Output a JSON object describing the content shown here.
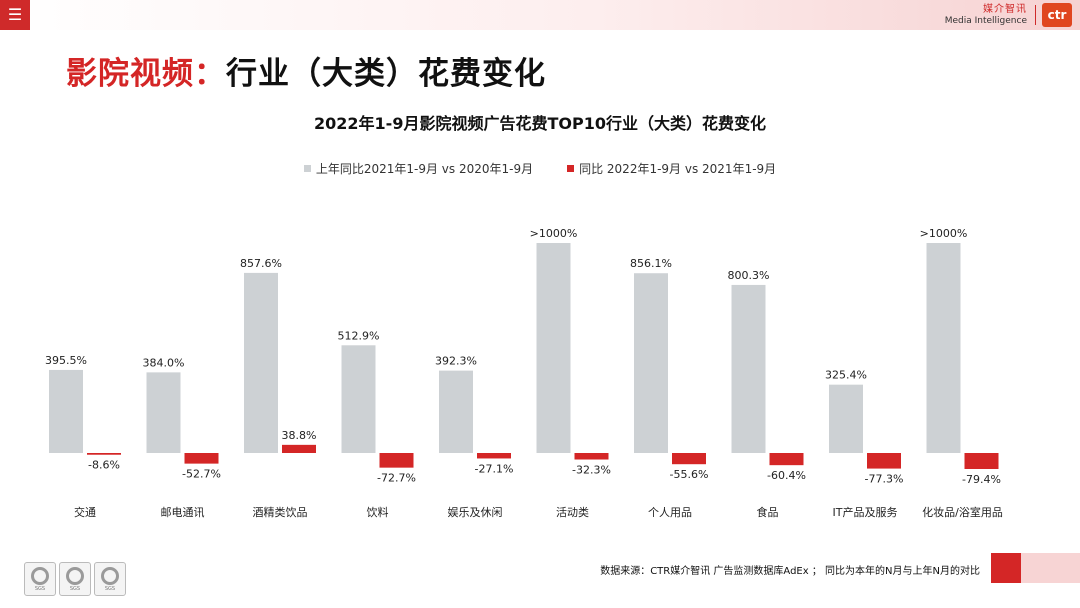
{
  "header": {
    "menu_icon": "hamburger-menu-icon",
    "brand_cn": "媒介智讯",
    "brand_en": "Media Intelligence",
    "brand_logo": "ctr"
  },
  "page": {
    "title_part1": "影院视频：",
    "title_part2": "行业（大类）花费变化"
  },
  "colors": {
    "series_2021": "#cdd1d4",
    "series_2022": "#d42626",
    "accent": "#cf2a2a"
  },
  "chart_data": {
    "type": "bar",
    "title": "2022年1-9月影院视频广告花费TOP10行业（大类）花费变化",
    "xlabel": "",
    "ylabel": "",
    "legend_position": "top",
    "grid": false,
    "categories": [
      "交通",
      "邮电通讯",
      "酒精类饮品",
      "饮料",
      "娱乐及休闲",
      "活动类",
      "个人用品",
      "食品",
      "IT产品及服务",
      "化妆品/浴室用品"
    ],
    "series": [
      {
        "name": "上年同比2021年1-9月 vs 2020年1-9月",
        "values": [
          395.5,
          384.0,
          857.6,
          512.9,
          392.3,
          1000,
          856.1,
          800.3,
          325.4,
          1000
        ],
        "labels": [
          "395.5%",
          "384.0%",
          "857.6%",
          "512.9%",
          "392.3%",
          ">1000%",
          "856.1%",
          "800.3%",
          "325.4%",
          ">1000%"
        ]
      },
      {
        "name": "同比 2022年1-9月  vs 2021年1-9月",
        "values": [
          -8.6,
          -52.7,
          38.8,
          -72.7,
          -27.1,
          -32.3,
          -55.6,
          -60.4,
          -77.3,
          -79.4
        ],
        "labels": [
          "-8.6%",
          "-52.7%",
          "38.8%",
          "-72.7%",
          "-27.1%",
          "-32.3%",
          "-55.6%",
          "-60.4%",
          "-77.3%",
          "-79.4%"
        ]
      }
    ]
  },
  "footer": {
    "source": "数据来源：CTR媒介智讯 广告监测数据库AdEx ； 同比为本年的N月与上年N月的对比",
    "seal_text": "SGS"
  }
}
